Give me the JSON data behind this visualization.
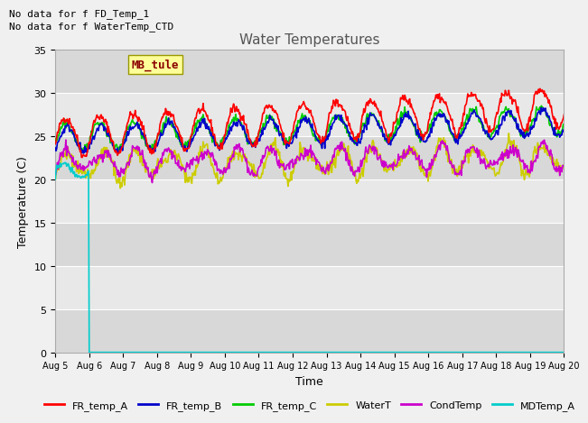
{
  "title": "Water Temperatures",
  "xlabel": "Time",
  "ylabel": "Temperature (C)",
  "ylim": [
    0,
    35
  ],
  "xlim": [
    0,
    360
  ],
  "annotation1": "No data for f FD_Temp_1",
  "annotation2": "No data for f WaterTemp_CTD",
  "legend_box_label": "MB_tule",
  "bg_band_y1": 27.5,
  "bg_band_y2": 35,
  "bg_band2_y1": 17.5,
  "bg_band2_y2": 22.5,
  "bg_band3_y1": 7.5,
  "bg_band3_y2": 12.5,
  "xtick_labels": [
    "Aug 5",
    "Aug 6",
    "Aug 7",
    "Aug 8",
    "Aug 9",
    "Aug 10",
    "Aug 11",
    "Aug 12",
    "Aug 13",
    "Aug 14",
    "Aug 15",
    "Aug 16",
    "Aug 17",
    "Aug 18",
    "Aug 19",
    "Aug 20"
  ],
  "ytick_values": [
    0,
    5,
    10,
    15,
    20,
    25,
    30,
    35
  ],
  "series_colors": {
    "FR_temp_A": "#ff0000",
    "FR_temp_B": "#0000cc",
    "FR_temp_C": "#00cc00",
    "WaterT": "#cccc00",
    "CondTemp": "#cc00cc",
    "MDTemp_A": "#00cccc"
  },
  "legend_entries": [
    "FR_temp_A",
    "FR_temp_B",
    "FR_temp_C",
    "WaterT",
    "CondTemp",
    "MDTemp_A"
  ],
  "fig_bg": "#f0f0f0",
  "plot_bg": "#e8e8e8",
  "grid_color": "#ffffff"
}
